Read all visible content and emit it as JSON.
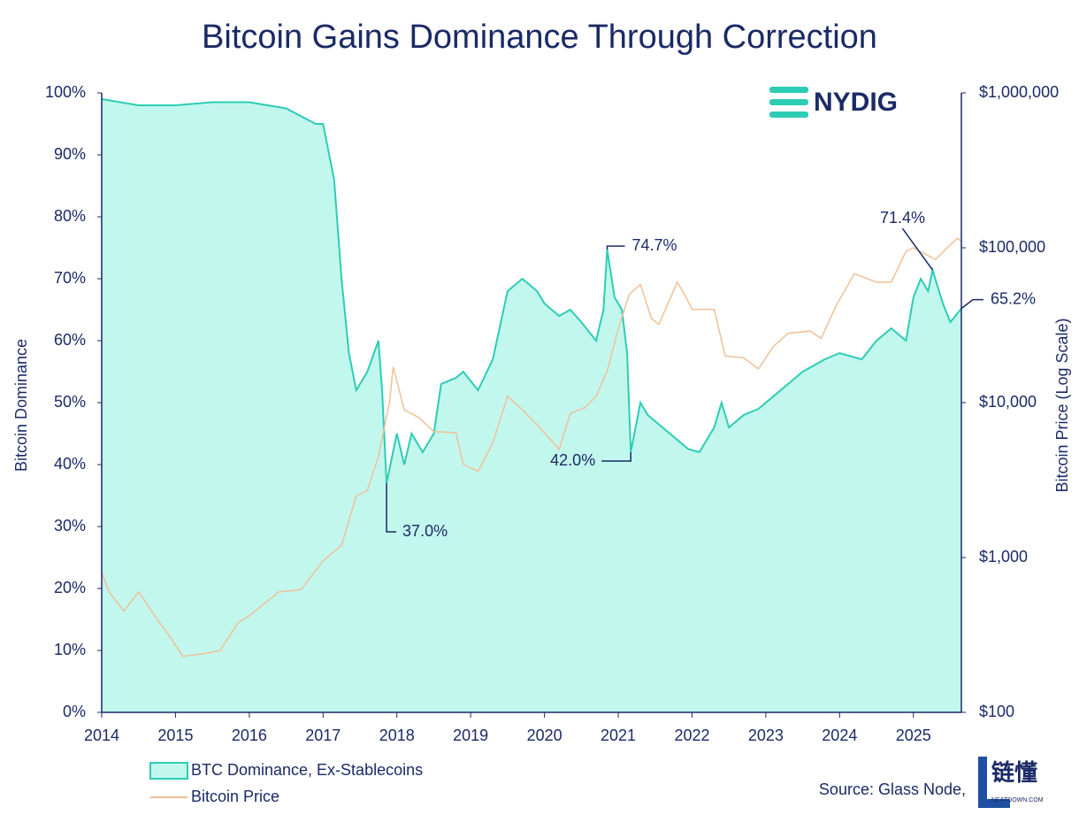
{
  "chart_data": {
    "type": "dual-line-area",
    "title": "Bitcoin Gains Dominance Through Correction",
    "logo": "NYDIG",
    "source": "Source: Glass Node,",
    "watermark": "链懂",
    "watermark_sub": "NEATDOWN.COM",
    "y_label": "Bitcoin Dominance",
    "y2_label": "Bitcoin Price (Log Scale)",
    "xlim": [
      2014,
      2025.65
    ],
    "xticks": [
      2014,
      2015,
      2016,
      2017,
      2018,
      2019,
      2020,
      2021,
      2022,
      2023,
      2024,
      2025
    ],
    "ylim": [
      0,
      100
    ],
    "yticks": [
      {
        "value": 0,
        "label": "0%"
      },
      {
        "value": 10,
        "label": "10%"
      },
      {
        "value": 20,
        "label": "20%"
      },
      {
        "value": 30,
        "label": "30%"
      },
      {
        "value": 40,
        "label": "40%"
      },
      {
        "value": 50,
        "label": "50%"
      },
      {
        "value": 60,
        "label": "60%"
      },
      {
        "value": 70,
        "label": "70%"
      },
      {
        "value": 80,
        "label": "80%"
      },
      {
        "value": 90,
        "label": "90%"
      },
      {
        "value": 100,
        "label": "100%"
      }
    ],
    "y2lim": [
      100,
      1000000
    ],
    "y2_log": true,
    "y2ticks": [
      {
        "value": 100,
        "label": "$100"
      },
      {
        "value": 1000,
        "label": "$1,000"
      },
      {
        "value": 10000,
        "label": "$10,000"
      },
      {
        "value": 100000,
        "label": "$100,000"
      },
      {
        "value": 1000000,
        "label": "$1,000,000"
      }
    ],
    "series": [
      {
        "name": "BTC Dominance, Ex-Stablecoins",
        "kind": "area",
        "color": "#2ccdb4",
        "fill": "#c2f7ee",
        "x": [
          2014.0,
          2014.5,
          2015.0,
          2015.5,
          2016.0,
          2016.5,
          2016.9,
          2017.0,
          2017.15,
          2017.25,
          2017.35,
          2017.45,
          2017.6,
          2017.75,
          2017.8,
          2017.86,
          2018.0,
          2018.1,
          2018.2,
          2018.35,
          2018.5,
          2018.6,
          2018.8,
          2018.9,
          2019.1,
          2019.3,
          2019.5,
          2019.7,
          2019.9,
          2020.0,
          2020.2,
          2020.35,
          2020.5,
          2020.7,
          2020.8,
          2020.85,
          2020.95,
          2021.05,
          2021.12,
          2021.17,
          2021.3,
          2021.4,
          2021.6,
          2021.8,
          2021.95,
          2022.1,
          2022.3,
          2022.4,
          2022.5,
          2022.7,
          2022.9,
          2023.0,
          2023.2,
          2023.5,
          2023.8,
          2024.0,
          2024.3,
          2024.5,
          2024.7,
          2024.9,
          2025.0,
          2025.1,
          2025.2,
          2025.26,
          2025.4,
          2025.5,
          2025.65
        ],
        "values": [
          99,
          98,
          98,
          98.5,
          98.5,
          97.5,
          95,
          95,
          86,
          70,
          58,
          52,
          55,
          60,
          52,
          37,
          45,
          40,
          45,
          42,
          45,
          53,
          54,
          55,
          52,
          57,
          68,
          70,
          68,
          66,
          64,
          65,
          63,
          60,
          65,
          74.7,
          67,
          65,
          58,
          42,
          50,
          48,
          46,
          44,
          42.5,
          42,
          46,
          50,
          46,
          48,
          49,
          50,
          52,
          55,
          57,
          58,
          57,
          60,
          62,
          60,
          67,
          70,
          68,
          71.4,
          66,
          63,
          65.2
        ]
      },
      {
        "name": "Bitcoin Price",
        "kind": "line",
        "axis": "y2",
        "color": "#f0c097",
        "x": [
          2014.0,
          2014.1,
          2014.3,
          2014.5,
          2014.75,
          2014.9,
          2015.1,
          2015.4,
          2015.6,
          2015.85,
          2016.0,
          2016.4,
          2016.7,
          2017.0,
          2017.25,
          2017.45,
          2017.6,
          2017.75,
          2017.9,
          2017.95,
          2018.1,
          2018.3,
          2018.5,
          2018.8,
          2018.9,
          2019.1,
          2019.3,
          2019.5,
          2019.7,
          2019.9,
          2020.2,
          2020.35,
          2020.55,
          2020.7,
          2020.85,
          2021.0,
          2021.15,
          2021.3,
          2021.45,
          2021.55,
          2021.8,
          2021.9,
          2022.0,
          2022.3,
          2022.45,
          2022.7,
          2022.9,
          2023.1,
          2023.3,
          2023.6,
          2023.75,
          2023.95,
          2024.2,
          2024.5,
          2024.7,
          2024.9,
          2025.0,
          2025.3,
          2025.5,
          2025.6,
          2025.65
        ],
        "values": [
          800,
          600,
          450,
          600,
          400,
          320,
          230,
          240,
          250,
          380,
          420,
          600,
          620,
          950,
          1200,
          2500,
          2700,
          4500,
          10000,
          17000,
          9000,
          8000,
          6500,
          6400,
          4000,
          3600,
          5500,
          11000,
          9000,
          7200,
          5000,
          8500,
          9300,
          11000,
          16000,
          30000,
          50000,
          58000,
          35000,
          32000,
          60000,
          50000,
          40000,
          40000,
          20000,
          19500,
          16500,
          23000,
          28000,
          29000,
          26000,
          42000,
          68000,
          60000,
          60000,
          95000,
          100000,
          84000,
          105000,
          115000,
          110000
        ]
      }
    ],
    "annotations": [
      {
        "x": 2017.86,
        "y": 37.0,
        "label": "37.0%"
      },
      {
        "x": 2021.17,
        "y": 42.0,
        "label": "42.0%"
      },
      {
        "x": 2020.85,
        "y": 74.7,
        "label": "74.7%"
      },
      {
        "x": 2025.26,
        "y": 71.4,
        "label": "71.4%"
      },
      {
        "x": 2025.65,
        "y": 65.2,
        "label": "65.2%"
      }
    ]
  }
}
